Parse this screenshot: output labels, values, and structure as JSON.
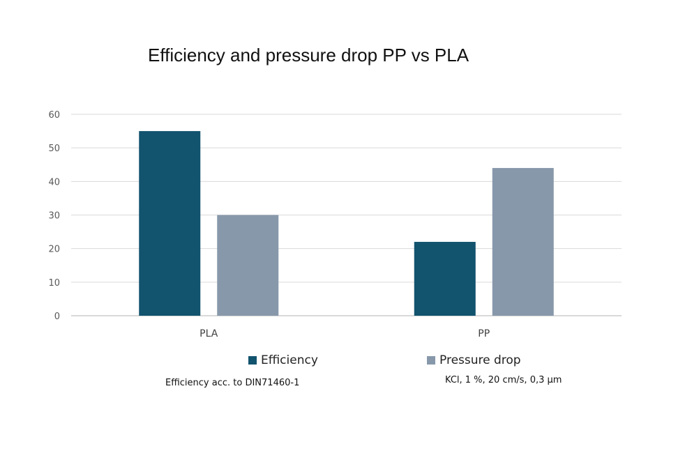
{
  "chart_data": {
    "type": "bar",
    "title": "Efficiency and pressure drop PP vs PLA",
    "xlabel": "",
    "ylabel": "",
    "categories": [
      "PLA",
      "PP"
    ],
    "series": [
      {
        "name": "Efficiency",
        "color": "#12536e",
        "values": [
          55,
          22
        ]
      },
      {
        "name": "Pressure drop",
        "color": "#8798aa",
        "values": [
          30,
          44
        ]
      }
    ],
    "ylim": [
      0,
      60
    ],
    "yticks": [
      0,
      10,
      20,
      30,
      40,
      50,
      60
    ],
    "grid": true,
    "legend_position": "bottom",
    "annotations": {
      "efficiency_note": "Efficiency acc. to DIN71460-1",
      "pressure_note": "KCl, 1 %, 20 cm/s, 0,3 µm"
    }
  }
}
